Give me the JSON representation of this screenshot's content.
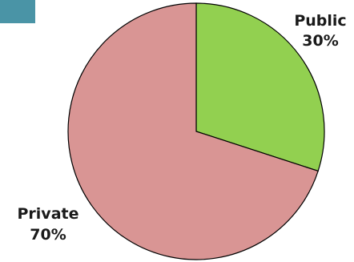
{
  "colors": {
    "corner_block": "#4a94a6",
    "background": "#ffffff"
  },
  "chart_data": {
    "type": "pie",
    "start": "12 o'clock, clockwise",
    "slices": [
      {
        "label": "Public",
        "value": 30,
        "value_label": "30%",
        "color": "#92d050"
      },
      {
        "label": "Private",
        "value": 70,
        "value_label": "70%",
        "color": "#d99594"
      }
    ]
  }
}
